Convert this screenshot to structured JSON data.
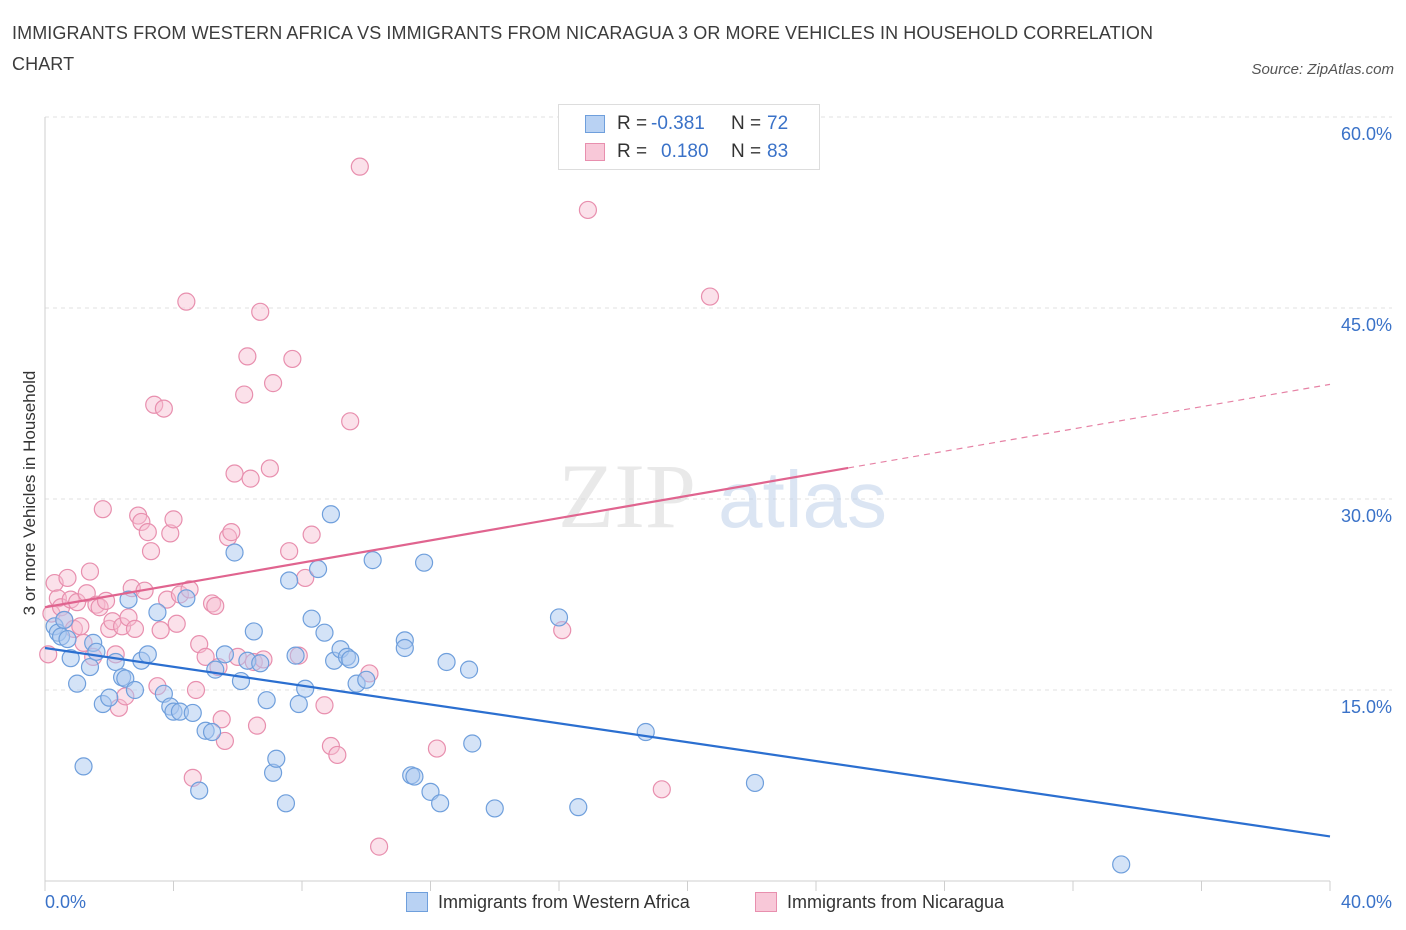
{
  "title": "IMMIGRANTS FROM WESTERN AFRICA VS IMMIGRANTS FROM NICARAGUA 3 OR MORE VEHICLES IN HOUSEHOLD CORRELATION CHART",
  "source": "Source: ZipAtlas.com",
  "watermark": {
    "zip": "ZIP",
    "atlas": "atlas"
  },
  "legend": {
    "row1": {
      "r_label": "R =",
      "r_value": "-0.381",
      "n_label": "N =",
      "n_value": "72"
    },
    "row2": {
      "r_label": "R =",
      "r_value": "0.180",
      "n_label": "N =",
      "n_value": "83"
    }
  },
  "bottom_legend": {
    "series1": "Immigrants from Western Africa",
    "series2": "Immigrants from Nicaragua"
  },
  "colors": {
    "blue_fill": "#a9c8f0",
    "blue_stroke": "#6f9fdc",
    "blue_line": "#2b6fd0",
    "pink_fill": "#f6bcd0",
    "pink_stroke": "#e88fae",
    "pink_line": "#e0648f",
    "tick_label": "#3a72c8",
    "grid": "#e2e2e2"
  },
  "chart_data": {
    "type": "scatter",
    "title": "IMMIGRANTS FROM WESTERN AFRICA VS IMMIGRANTS FROM NICARAGUA 3 OR MORE VEHICLES IN HOUSEHOLD CORRELATION CHART",
    "xlabel": "",
    "ylabel": "3 or more Vehicles in Household",
    "xlim": [
      0,
      40
    ],
    "ylim": [
      0,
      60
    ],
    "x_tick_labels": [
      "0.0%",
      "40.0%"
    ],
    "y_ticks": [
      15,
      30,
      45,
      60
    ],
    "y_tick_labels": [
      "15.0%",
      "30.0%",
      "45.0%",
      "60.0%"
    ],
    "grid": true,
    "legend_position": "top-center",
    "series": [
      {
        "name": "Immigrants from Western Africa",
        "color": "#6f9fdc",
        "r": -0.381,
        "n": 72,
        "trend": {
          "x0": 0,
          "y0": 18.3,
          "x1": 40,
          "y1": 3.5,
          "dashed_from": null
        },
        "points": [
          [
            0.3,
            20.0
          ],
          [
            0.4,
            19.5
          ],
          [
            0.5,
            19.2
          ],
          [
            0.6,
            20.5
          ],
          [
            0.7,
            19.0
          ],
          [
            0.8,
            17.5
          ],
          [
            1.0,
            15.5
          ],
          [
            1.2,
            9.0
          ],
          [
            1.4,
            16.8
          ],
          [
            1.5,
            18.7
          ],
          [
            1.6,
            18.0
          ],
          [
            1.8,
            13.9
          ],
          [
            2.0,
            14.4
          ],
          [
            2.2,
            17.2
          ],
          [
            2.4,
            16.0
          ],
          [
            2.5,
            15.9
          ],
          [
            2.6,
            22.1
          ],
          [
            2.8,
            15.0
          ],
          [
            3.0,
            17.3
          ],
          [
            3.2,
            17.8
          ],
          [
            3.5,
            21.1
          ],
          [
            3.7,
            14.7
          ],
          [
            3.9,
            13.7
          ],
          [
            4.0,
            13.3
          ],
          [
            4.2,
            13.3
          ],
          [
            4.4,
            22.2
          ],
          [
            4.6,
            13.2
          ],
          [
            4.8,
            7.1
          ],
          [
            5.0,
            11.8
          ],
          [
            5.2,
            11.7
          ],
          [
            5.3,
            16.6
          ],
          [
            5.6,
            17.8
          ],
          [
            5.9,
            25.8
          ],
          [
            6.1,
            15.7
          ],
          [
            6.3,
            17.3
          ],
          [
            6.5,
            19.6
          ],
          [
            6.7,
            17.1
          ],
          [
            6.9,
            14.2
          ],
          [
            7.1,
            8.5
          ],
          [
            7.2,
            9.6
          ],
          [
            7.5,
            6.1
          ],
          [
            7.6,
            23.6
          ],
          [
            7.8,
            17.7
          ],
          [
            7.9,
            13.9
          ],
          [
            8.1,
            15.1
          ],
          [
            8.3,
            20.6
          ],
          [
            8.5,
            24.5
          ],
          [
            8.7,
            19.5
          ],
          [
            8.9,
            28.8
          ],
          [
            9.0,
            17.3
          ],
          [
            9.2,
            18.2
          ],
          [
            9.4,
            17.6
          ],
          [
            9.5,
            17.4
          ],
          [
            9.7,
            15.5
          ],
          [
            10.0,
            15.8
          ],
          [
            10.2,
            25.2
          ],
          [
            11.2,
            18.9
          ],
          [
            11.2,
            18.3
          ],
          [
            11.4,
            8.3
          ],
          [
            11.5,
            8.2
          ],
          [
            11.8,
            25.0
          ],
          [
            12.0,
            7.0
          ],
          [
            12.3,
            6.1
          ],
          [
            12.5,
            17.2
          ],
          [
            13.2,
            16.6
          ],
          [
            13.3,
            10.8
          ],
          [
            14.0,
            5.7
          ],
          [
            16.0,
            20.7
          ],
          [
            16.6,
            5.8
          ],
          [
            18.7,
            11.7
          ],
          [
            22.1,
            7.7
          ],
          [
            33.5,
            1.3
          ]
        ]
      },
      {
        "name": "Immigrants from Nicaragua",
        "color": "#e88fae",
        "r": 0.18,
        "n": 83,
        "trend": {
          "x0": 0,
          "y0": 21.5,
          "x1": 40,
          "y1": 39.0,
          "dashed_from": 25.0
        },
        "points": [
          [
            0.2,
            21.0
          ],
          [
            0.3,
            23.4
          ],
          [
            0.4,
            22.2
          ],
          [
            0.5,
            21.5
          ],
          [
            0.6,
            20.5
          ],
          [
            0.7,
            23.8
          ],
          [
            0.8,
            22.1
          ],
          [
            0.9,
            19.8
          ],
          [
            1.0,
            21.9
          ],
          [
            1.1,
            20.0
          ],
          [
            1.2,
            18.7
          ],
          [
            1.3,
            22.6
          ],
          [
            1.4,
            24.3
          ],
          [
            1.5,
            17.6
          ],
          [
            1.6,
            21.7
          ],
          [
            1.7,
            21.5
          ],
          [
            1.8,
            29.2
          ],
          [
            1.9,
            22.0
          ],
          [
            2.0,
            19.8
          ],
          [
            2.1,
            20.4
          ],
          [
            2.2,
            17.8
          ],
          [
            2.3,
            13.6
          ],
          [
            2.4,
            20.0
          ],
          [
            2.5,
            14.5
          ],
          [
            2.6,
            20.7
          ],
          [
            2.7,
            23.0
          ],
          [
            2.8,
            19.8
          ],
          [
            2.9,
            28.7
          ],
          [
            3.0,
            28.2
          ],
          [
            3.1,
            22.8
          ],
          [
            3.2,
            27.4
          ],
          [
            3.3,
            25.9
          ],
          [
            3.4,
            37.4
          ],
          [
            3.5,
            15.3
          ],
          [
            3.6,
            19.7
          ],
          [
            3.7,
            37.1
          ],
          [
            3.8,
            22.1
          ],
          [
            3.9,
            27.3
          ],
          [
            4.0,
            28.4
          ],
          [
            4.1,
            20.2
          ],
          [
            4.2,
            22.5
          ],
          [
            4.4,
            45.5
          ],
          [
            4.5,
            22.9
          ],
          [
            4.6,
            8.1
          ],
          [
            4.7,
            15.0
          ],
          [
            4.8,
            18.6
          ],
          [
            5.0,
            17.6
          ],
          [
            5.2,
            21.8
          ],
          [
            5.3,
            21.6
          ],
          [
            5.4,
            16.8
          ],
          [
            5.5,
            12.7
          ],
          [
            5.6,
            11.0
          ],
          [
            5.7,
            27.0
          ],
          [
            5.8,
            27.4
          ],
          [
            5.9,
            32.0
          ],
          [
            6.0,
            17.6
          ],
          [
            6.2,
            38.2
          ],
          [
            6.3,
            41.2
          ],
          [
            6.4,
            31.6
          ],
          [
            6.5,
            17.2
          ],
          [
            6.6,
            12.2
          ],
          [
            6.7,
            44.7
          ],
          [
            6.8,
            17.4
          ],
          [
            7.0,
            32.4
          ],
          [
            7.1,
            39.1
          ],
          [
            7.6,
            25.9
          ],
          [
            7.7,
            41.0
          ],
          [
            7.9,
            17.7
          ],
          [
            8.1,
            23.8
          ],
          [
            8.3,
            27.2
          ],
          [
            8.7,
            13.8
          ],
          [
            8.9,
            10.6
          ],
          [
            9.1,
            9.9
          ],
          [
            9.5,
            36.1
          ],
          [
            9.8,
            56.1
          ],
          [
            10.1,
            16.3
          ],
          [
            10.4,
            2.7
          ],
          [
            12.2,
            10.4
          ],
          [
            16.1,
            19.7
          ],
          [
            16.9,
            52.7
          ],
          [
            19.2,
            7.2
          ],
          [
            20.7,
            45.9
          ],
          [
            0.1,
            17.8
          ]
        ]
      }
    ]
  }
}
